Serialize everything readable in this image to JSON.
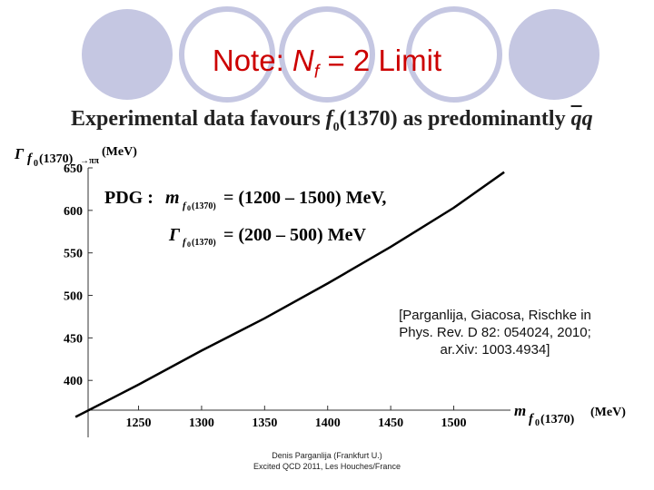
{
  "slide": {
    "title_prefix": "Note: ",
    "title_var": "N",
    "title_sub": "f",
    "title_suffix": " = 2 Limit",
    "subtitle_part1": "Experimental data favours ",
    "subtitle_part2": " as predominantly ",
    "citation_line1": "[Parganlija, Giacosa, Rischke in",
    "citation_line2": "Phys. Rev. D 82: 054024, 2010;",
    "citation_line3": "ar.Xiv: 1003.4934]",
    "footer_line1": "Denis Parganlija (Frankfurt U.)",
    "footer_line2": "Excited QCD 2011, Les Houches/France"
  },
  "chart_data": {
    "type": "line",
    "ylabel": "Γ f0(1370)→ππ (MeV)",
    "xlabel": "m f0(1370) (MeV)",
    "xlim": [
      1210,
      1545
    ],
    "ylim": [
      365,
      650
    ],
    "xticks": [
      1250,
      1300,
      1350,
      1400,
      1450,
      1500
    ],
    "yticks": [
      400,
      450,
      500,
      550,
      600,
      650
    ],
    "series": [
      {
        "x": [
          1200,
          1250,
          1300,
          1350,
          1400,
          1450,
          1500,
          1540
        ],
        "y": [
          357,
          395,
          435,
          473,
          514,
          557,
          603,
          645
        ]
      }
    ],
    "annotations": {
      "pdg_label": "PDG :",
      "pdg_mass_range": "= (1200 – 1500) MeV,",
      "pdg_width_range": "= (200 – 500) MeV"
    },
    "line_color": "#000000"
  }
}
